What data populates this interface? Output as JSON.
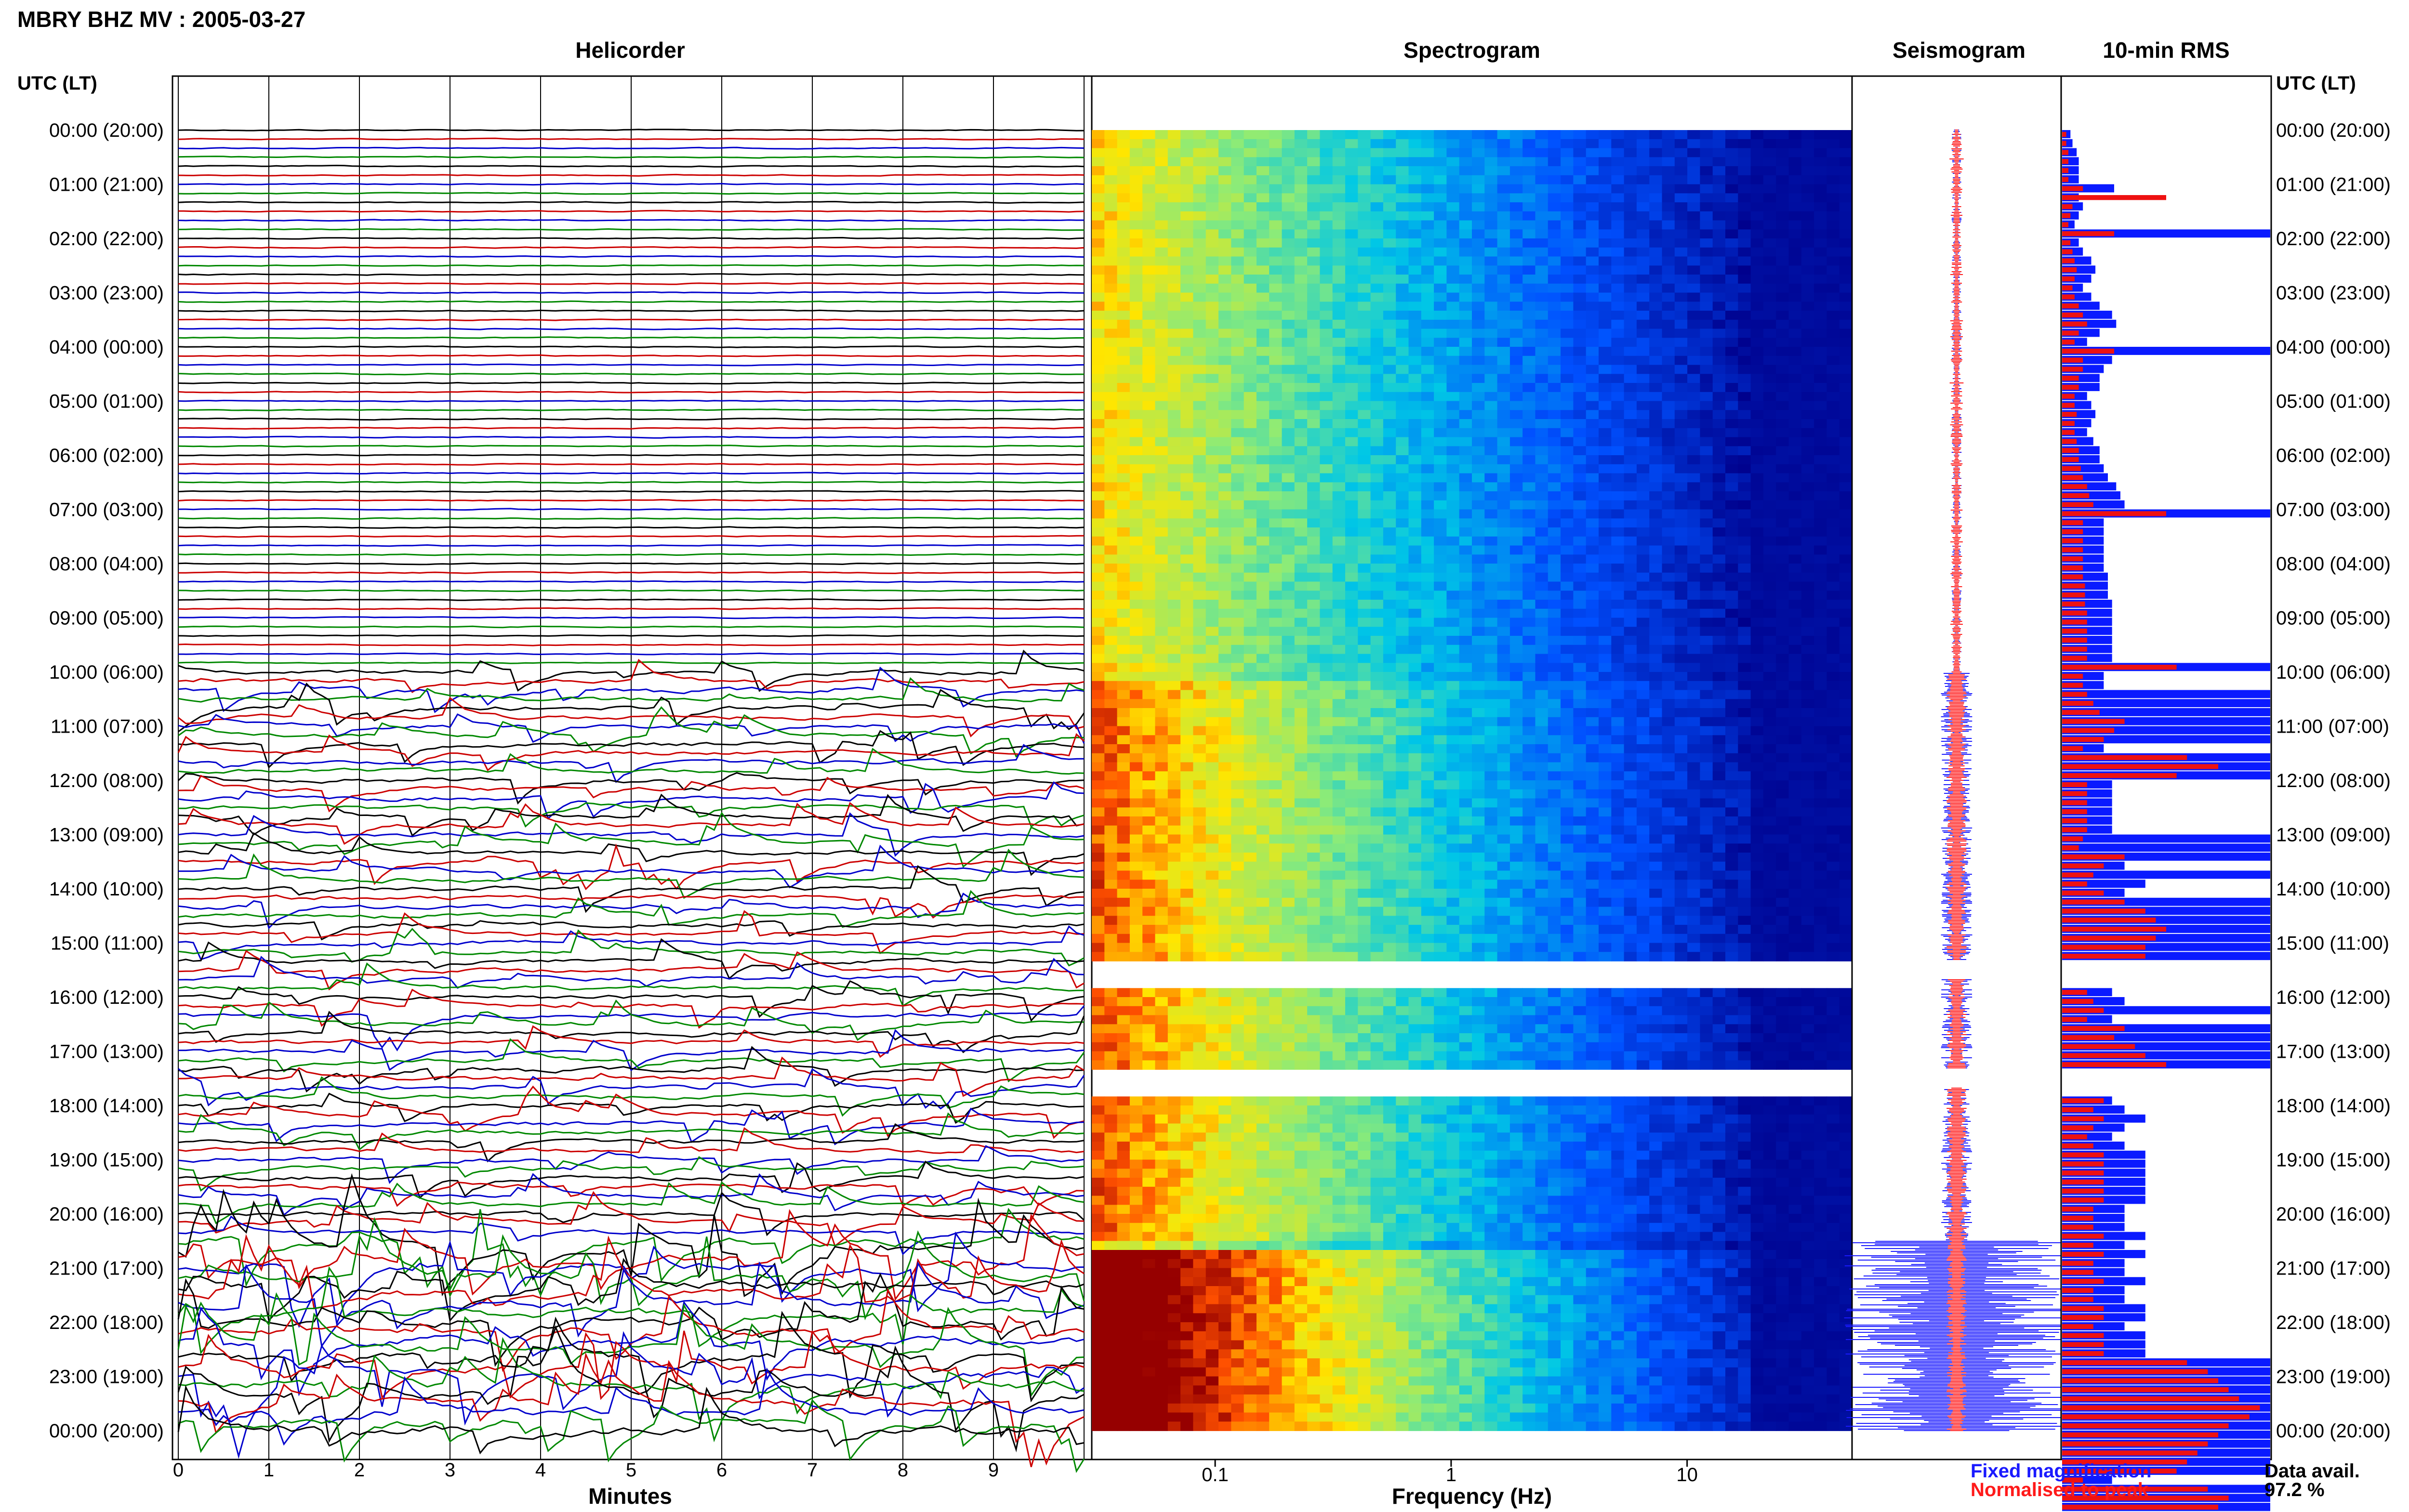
{
  "header": {
    "title": "MBRY BHZ MV : 2005-03-27"
  },
  "panels": {
    "helicorder": "Helicorder",
    "spectrogram": "Spectrogram",
    "seismogram": "Seismogram",
    "rms": "10-min RMS"
  },
  "time_axis": {
    "label": "UTC (LT)",
    "ticks": [
      "00:00 (20:00)",
      "01:00 (21:00)",
      "02:00 (22:00)",
      "03:00 (23:00)",
      "04:00 (00:00)",
      "05:00 (01:00)",
      "06:00 (02:00)",
      "07:00 (03:00)",
      "08:00 (04:00)",
      "09:00 (05:00)",
      "10:00 (06:00)",
      "11:00 (07:00)",
      "12:00 (08:00)",
      "13:00 (09:00)",
      "14:00 (10:00)",
      "15:00 (11:00)",
      "16:00 (12:00)",
      "17:00 (13:00)",
      "18:00 (14:00)",
      "19:00 (15:00)",
      "20:00 (16:00)",
      "21:00 (17:00)",
      "22:00 (18:00)",
      "23:00 (19:00)",
      "00:00 (20:00)"
    ]
  },
  "helicorder_axis": {
    "label": "Minutes",
    "ticks": [
      "0",
      "1",
      "2",
      "3",
      "4",
      "5",
      "6",
      "7",
      "8",
      "9"
    ]
  },
  "frequency_axis": {
    "label": "Frequency (Hz)",
    "ticks": [
      "0.1",
      "1",
      "10"
    ],
    "scale": "log"
  },
  "legend": {
    "fixed": "Fixed magnification",
    "normalised": "Normalised to peak",
    "fixed_color": "#1a1aff",
    "normalised_color": "#ff1a1a"
  },
  "availability": {
    "label": "Data avail.",
    "value": "97.2 %"
  },
  "colors": {
    "trace_colors": [
      "#000000",
      "#cc0000",
      "#0000cc",
      "#008800"
    ],
    "rms_fixed": "#0a1aff",
    "rms_normalised": "#ee1111"
  },
  "chart_data": {
    "type": "heatmap",
    "title": "MBRY BHZ MV : 2005-03-27",
    "x_minutes": [
      0,
      10
    ],
    "x_frequency_hz": [
      0.03,
      50
    ],
    "y_time_utc_hours": [
      0,
      24
    ],
    "gaps_utc_hours": [
      [
        15.33,
        15.67
      ],
      [
        17.33,
        17.67
      ]
    ],
    "rms_10min": {
      "series": [
        {
          "name": "Fixed magnification",
          "values": [
            0.04,
            0.05,
            0.07,
            0.08,
            0.08,
            0.08,
            0.25,
            0.08,
            0.1,
            0.08,
            0.06,
            1.0,
            0.08,
            0.1,
            0.14,
            0.16,
            0.14,
            0.1,
            0.14,
            0.18,
            0.24,
            0.26,
            0.18,
            0.12,
            1.0,
            0.24,
            0.2,
            0.18,
            0.18,
            0.12,
            0.14,
            0.16,
            0.14,
            0.12,
            0.15,
            0.18,
            0.18,
            0.2,
            0.22,
            0.26,
            0.28,
            0.3,
            1.0,
            0.2,
            0.2,
            0.2,
            0.2,
            0.2,
            0.2,
            0.22,
            0.22,
            0.22,
            0.24,
            0.24,
            0.24,
            0.24,
            0.24,
            0.24,
            0.24,
            1.0,
            0.2,
            0.2,
            1.0,
            1.0,
            1.0,
            1.0,
            1.0,
            1.0,
            0.2,
            1.0,
            1.0,
            1.0,
            0.24,
            0.24,
            0.24,
            0.24,
            0.24,
            0.24,
            1.0,
            1.0,
            1.0,
            0.3,
            1.0,
            0.4,
            0.3,
            1.0,
            1.0,
            1.0,
            1.0,
            1.0,
            1.0,
            1.0,
            1.0,
            0.3,
            1.0,
            0.24,
            0.3,
            1.0,
            0.24,
            1.0,
            1.0,
            1.0,
            1.0,
            1.0,
            1.0,
            1.0,
            1.0,
            0.24,
            0.3,
            0.4,
            0.3,
            0.24,
            0.3,
            0.4,
            0.4,
            0.4,
            0.4,
            0.4,
            0.4,
            0.3,
            0.3,
            0.3,
            0.4,
            0.3,
            0.4,
            0.3,
            0.3,
            0.4,
            0.3,
            0.3,
            0.4,
            0.4,
            0.3,
            0.4,
            0.4,
            0.4,
            1.0,
            1.0,
            1.0,
            1.0,
            1.0,
            1.0,
            1.0,
            1.0,
            1.0,
            1.0,
            1.0,
            1.0,
            1.0,
            0.24,
            1.0,
            1.0,
            1.0,
            1.0
          ]
        },
        {
          "name": "Normalised to peak",
          "values": [
            0.02,
            0.02,
            0.03,
            0.03,
            0.03,
            0.03,
            0.1,
            0.5,
            0.05,
            0.04,
            0.03,
            0.25,
            0.04,
            0.05,
            0.06,
            0.07,
            0.06,
            0.05,
            0.06,
            0.08,
            0.1,
            0.12,
            0.08,
            0.06,
            0.25,
            0.1,
            0.1,
            0.08,
            0.08,
            0.06,
            0.06,
            0.07,
            0.06,
            0.06,
            0.07,
            0.08,
            0.08,
            0.09,
            0.1,
            0.12,
            0.13,
            0.15,
            0.5,
            0.1,
            0.1,
            0.1,
            0.1,
            0.1,
            0.1,
            0.1,
            0.11,
            0.11,
            0.11,
            0.12,
            0.12,
            0.12,
            0.12,
            0.12,
            0.12,
            0.55,
            0.1,
            0.1,
            0.12,
            0.15,
            0.18,
            0.3,
            0.25,
            0.2,
            0.1,
            0.6,
            0.75,
            0.55,
            0.12,
            0.12,
            0.12,
            0.12,
            0.12,
            0.12,
            0.1,
            0.08,
            0.3,
            0.2,
            0.15,
            0.12,
            0.2,
            0.3,
            0.4,
            0.45,
            0.5,
            0.45,
            0.4,
            0.4,
            0.15,
            0.15,
            0.35,
            0.12,
            0.15,
            0.2,
            0.12,
            0.3,
            0.25,
            0.35,
            0.4,
            0.5,
            0.55,
            0.45,
            0.4,
            0.2,
            0.15,
            0.2,
            0.15,
            0.12,
            0.15,
            0.2,
            0.2,
            0.2,
            0.2,
            0.2,
            0.2,
            0.15,
            0.15,
            0.15,
            0.2,
            0.15,
            0.2,
            0.15,
            0.15,
            0.2,
            0.15,
            0.15,
            0.2,
            0.2,
            0.15,
            0.2,
            0.2,
            0.2,
            0.6,
            0.7,
            0.75,
            0.8,
            0.85,
            0.95,
            0.9,
            0.8,
            0.75,
            0.7,
            0.65,
            0.6,
            0.55,
            0.1,
            0.7,
            0.8,
            0.75,
            0.75
          ]
        }
      ]
    }
  }
}
